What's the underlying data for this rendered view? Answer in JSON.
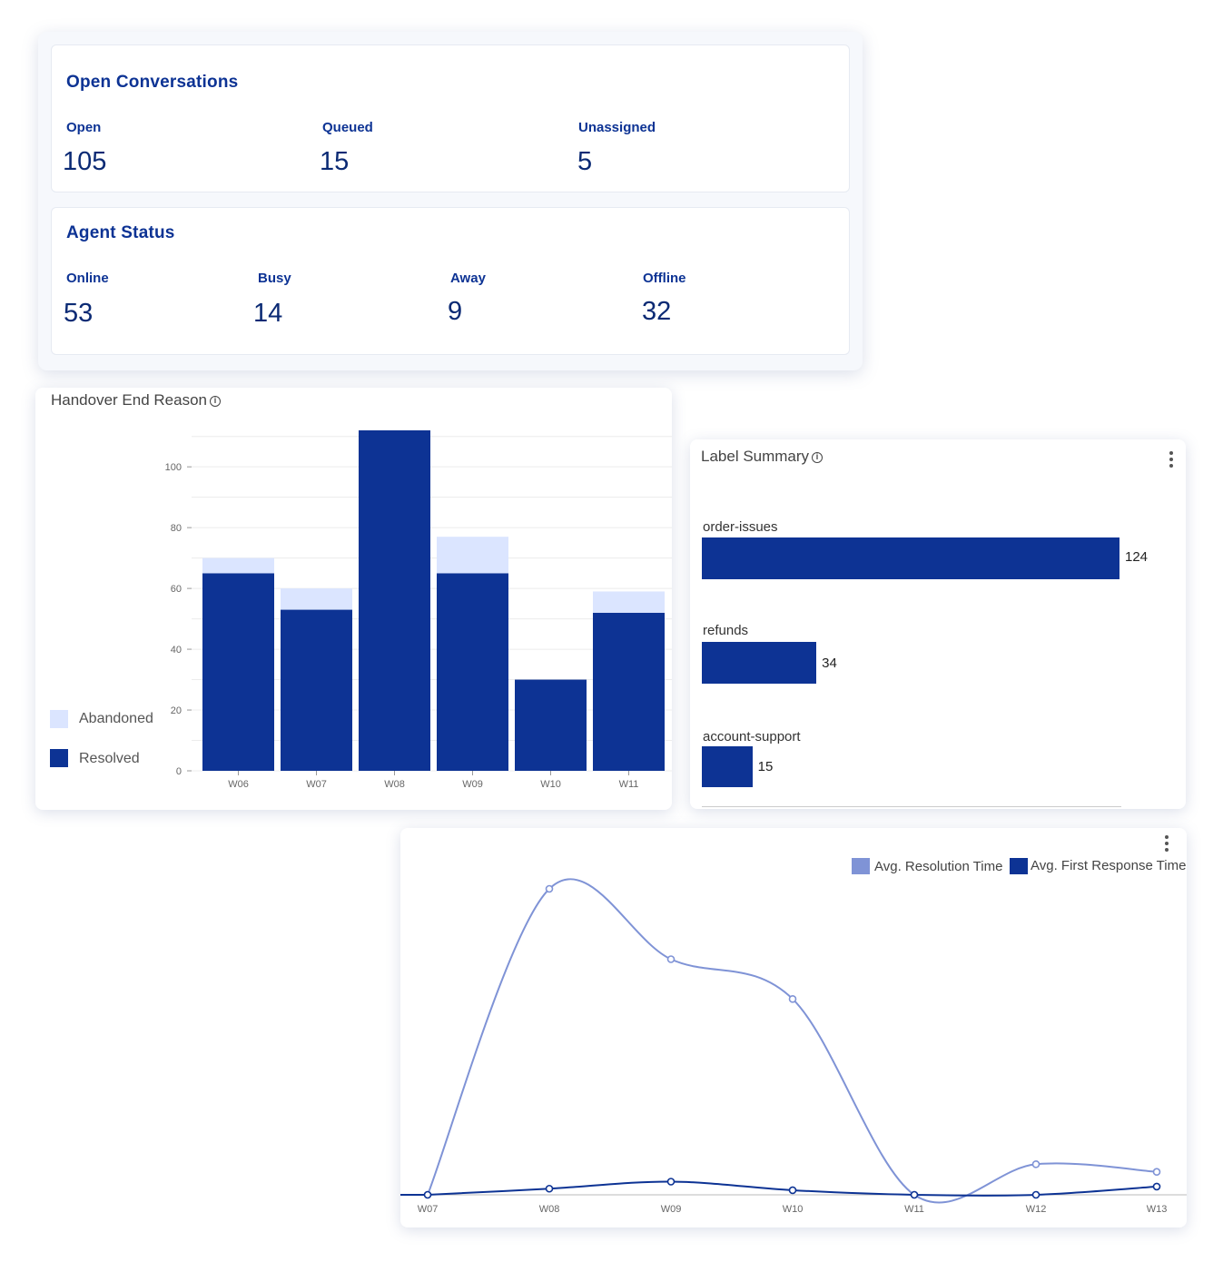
{
  "open_conversations": {
    "title": "Open Conversations",
    "items": [
      {
        "label": "Open",
        "value": "105"
      },
      {
        "label": "Queued",
        "value": "15"
      },
      {
        "label": "Unassigned",
        "value": "5"
      }
    ]
  },
  "agent_status": {
    "title": "Agent Status",
    "items": [
      {
        "label": "Online",
        "value": "53"
      },
      {
        "label": "Busy",
        "value": "14"
      },
      {
        "label": "Away",
        "value": "9"
      },
      {
        "label": "Offline",
        "value": "32"
      }
    ]
  },
  "handover": {
    "title": "Handover End Reason",
    "info_icon": "info-icon",
    "legend": [
      {
        "name": "Abandoned",
        "color": "#dbe5ff"
      },
      {
        "name": "Resolved",
        "color": "#0d3394"
      }
    ]
  },
  "label_summary": {
    "title": "Label Summary",
    "info_icon": "info-icon",
    "menu_icon": "more-vertical-icon",
    "bars": [
      {
        "label": "order-issues",
        "value": "124"
      },
      {
        "label": "refunds",
        "value": "34"
      },
      {
        "label": "account-support",
        "value": "15"
      }
    ]
  },
  "response_times": {
    "menu_icon": "more-vertical-icon",
    "legend": [
      {
        "name": "Avg. Resolution Time",
        "color": "#7f93d6"
      },
      {
        "name": "Avg. First Response Time",
        "color": "#0d3394"
      }
    ]
  },
  "chart_data": [
    {
      "type": "bar",
      "title": "Handover End Reason",
      "stacked": true,
      "categories": [
        "W06",
        "W07",
        "W08",
        "W09",
        "W10",
        "W11"
      ],
      "series": [
        {
          "name": "Resolved",
          "values": [
            65,
            53,
            112,
            65,
            30,
            52
          ]
        },
        {
          "name": "Abandoned",
          "values": [
            5,
            7,
            0,
            12,
            0,
            7
          ]
        }
      ],
      "yticks": [
        0,
        20,
        40,
        60,
        80,
        100
      ],
      "ylim": [
        0,
        112
      ],
      "legend_position": "left",
      "grid": true,
      "colors": {
        "Resolved": "#0d3394",
        "Abandoned": "#dbe5ff"
      }
    },
    {
      "type": "bar",
      "orientation": "horizontal",
      "title": "Label Summary",
      "categories": [
        "order-issues",
        "refunds",
        "account-support"
      ],
      "values": [
        124,
        34,
        15
      ],
      "color": "#0d3394"
    },
    {
      "type": "line",
      "categories": [
        "W07",
        "W08",
        "W09",
        "W10",
        "W11",
        "W12",
        "W13"
      ],
      "series": [
        {
          "name": "Avg. Resolution Time",
          "values": [
            0,
            100,
            77,
            64,
            0,
            10,
            7.5
          ],
          "color": "#7f93d6"
        },
        {
          "name": "Avg. First Response Time",
          "values": [
            0,
            2,
            4.3,
            1.5,
            0,
            0,
            2.7
          ],
          "color": "#0d3394"
        }
      ],
      "legend_position": "top-right"
    }
  ]
}
